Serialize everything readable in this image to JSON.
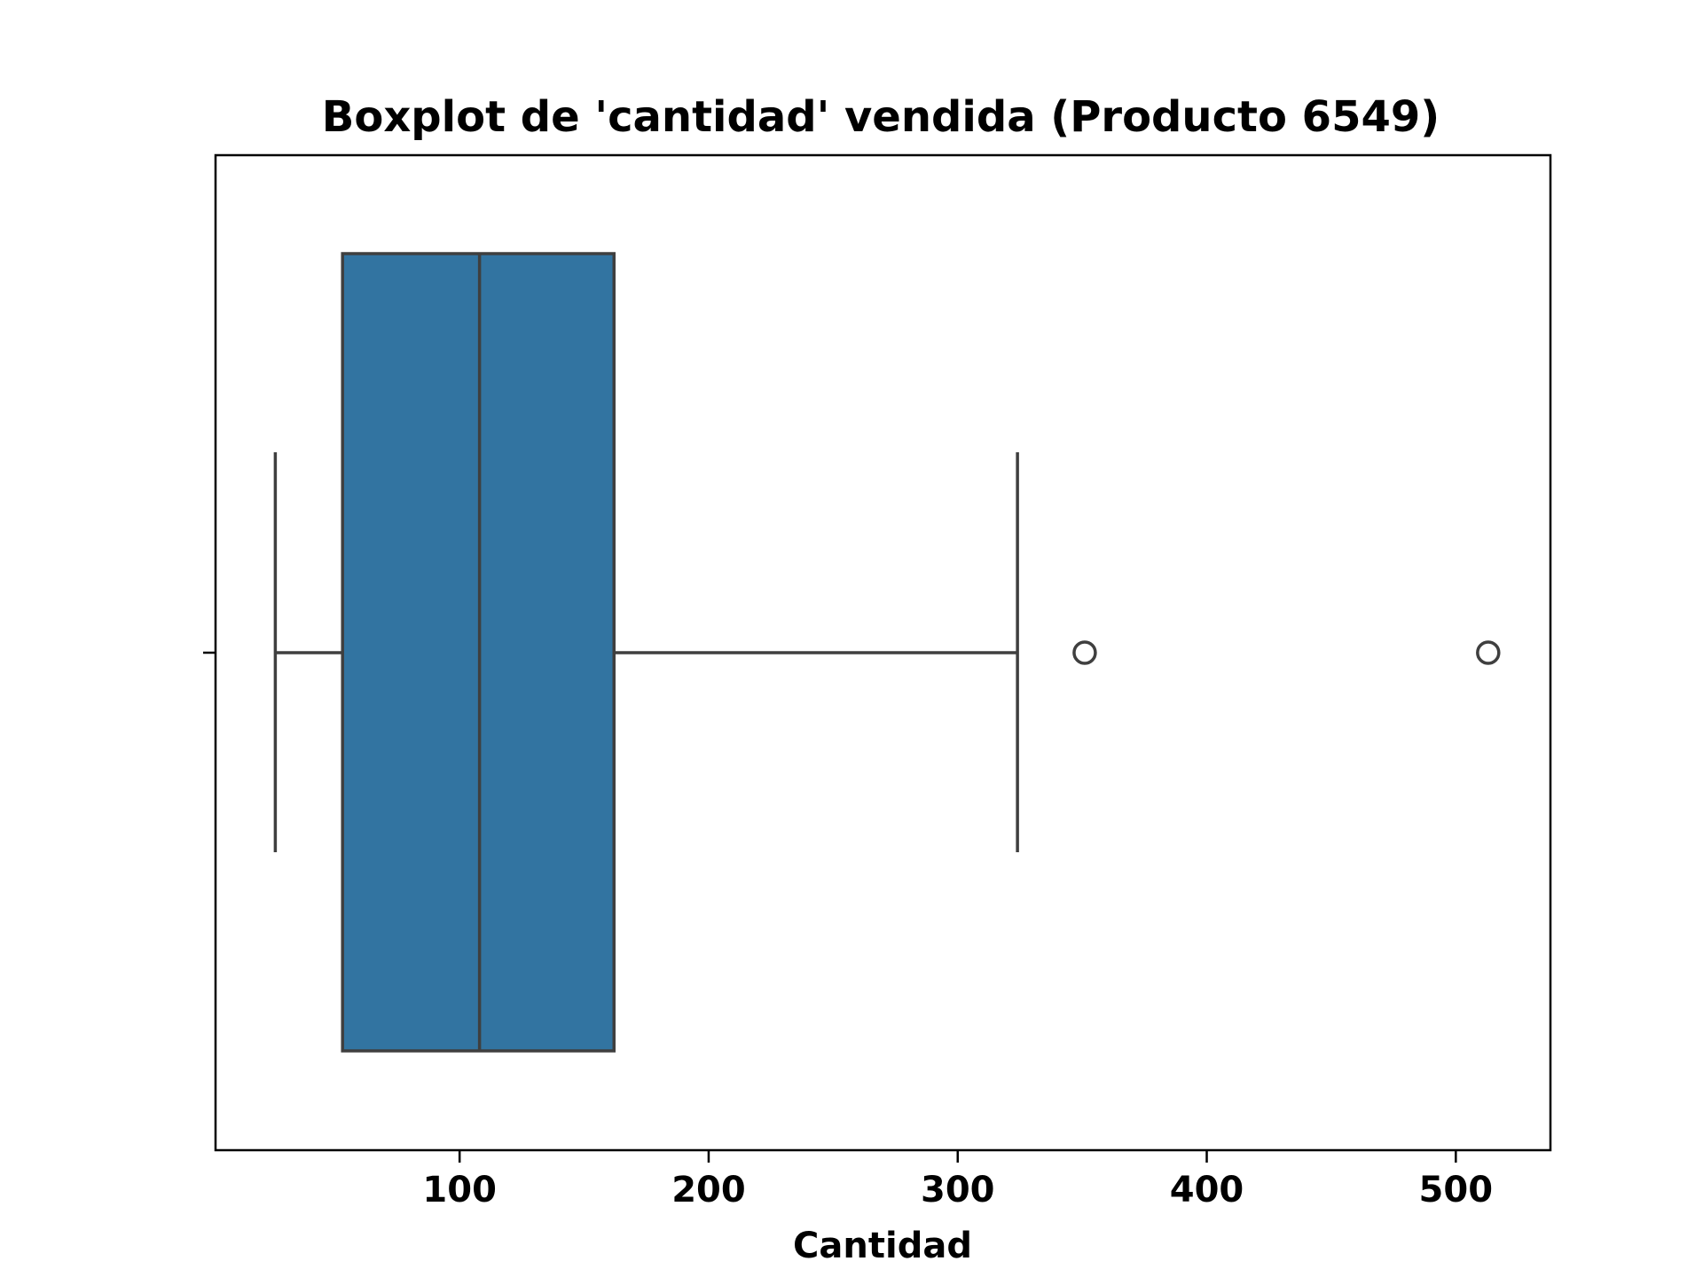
{
  "chart_data": {
    "type": "boxplot",
    "orientation": "horizontal",
    "title": "Boxplot de 'cantidad' vendida (Producto 6549)",
    "xlabel": "Cantidad",
    "ylabel": "",
    "xlim": [
      2,
      538
    ],
    "xticks": [
      100,
      200,
      300,
      400,
      500
    ],
    "xtick_labels": [
      "100",
      "200",
      "300",
      "400",
      "500"
    ],
    "grid": false,
    "box": {
      "whisker_low": 26,
      "q1": 53,
      "median": 108,
      "q3": 162,
      "whisker_high": 324,
      "outliers": [
        351,
        513
      ]
    },
    "colors": {
      "box_fill": "#3274a1",
      "box_edge": "#3f3f3f",
      "axes": "#000000"
    }
  }
}
